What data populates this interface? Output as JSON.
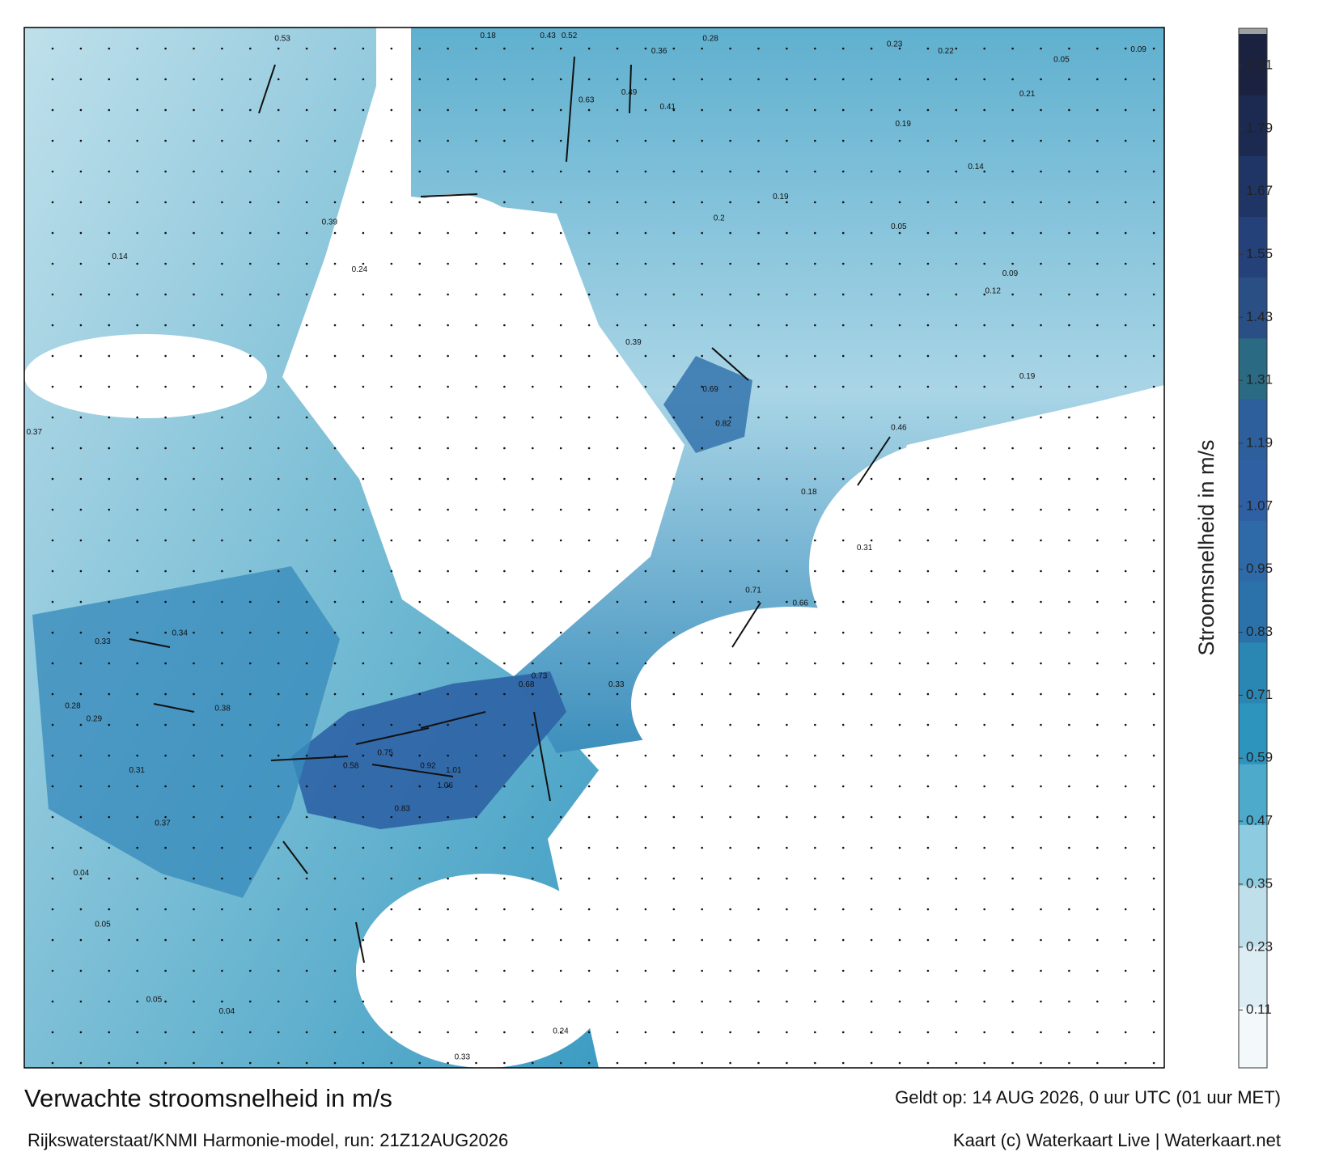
{
  "header": {
    "title": "Verwachte stroomsnelheid in m/s",
    "valid": "Geldt op: 14 AUG 2026, 0 uur UTC (01 uur MET)",
    "model": "Rijkswaterstaat/KNMI Harmonie-model, run: 21Z12AUG2026",
    "credit": "Kaart (c) Waterkaart Live | Waterkaart.net"
  },
  "colorbar": {
    "label": "Stroomsnelheid in m/s",
    "range": [
      0,
      1.97
    ],
    "ticks": [
      0.11,
      0.23,
      0.35,
      0.47,
      0.59,
      0.71,
      0.83,
      0.95,
      1.07,
      1.19,
      1.31,
      1.43,
      1.55,
      1.67,
      1.79,
      1.91
    ],
    "colors": [
      "#f3f9fb",
      "#dcedf3",
      "#bfe0eb",
      "#8ccbe0",
      "#4eaaca",
      "#2d94bd",
      "#2a86b2",
      "#2c72aa",
      "#2f6aa8",
      "#2f60a3",
      "#2c5f9c",
      "#2b6a83",
      "#2a4f84",
      "#25417a",
      "#1f3566",
      "#1c2a52",
      "#1a2240"
    ],
    "cap_color": "#a0a0a0"
  },
  "map": {
    "labels": [
      0.18,
      0.43,
      0.52,
      0.36,
      0.28,
      0.23,
      0.22,
      0.05,
      0.09,
      0.63,
      0.49,
      0.41,
      0.19,
      0.14,
      0.19,
      0.2,
      0.05,
      0.12,
      0.39,
      0.69,
      0.19,
      0.46,
      0.82,
      0.18,
      0.31,
      0.71,
      0.66,
      0.73,
      0.68,
      0.33,
      1.01,
      0.92,
      0.75,
      0.58,
      1.06,
      0.83,
      0.34,
      0.33,
      0.38,
      0.29,
      0.28,
      0.31,
      0.37,
      0.04,
      0.05,
      0.05,
      0.04,
      0.33,
      0.24,
      0.39,
      0.37,
      0.14,
      0.24,
      0.09,
      0.53,
      0.21
    ]
  }
}
